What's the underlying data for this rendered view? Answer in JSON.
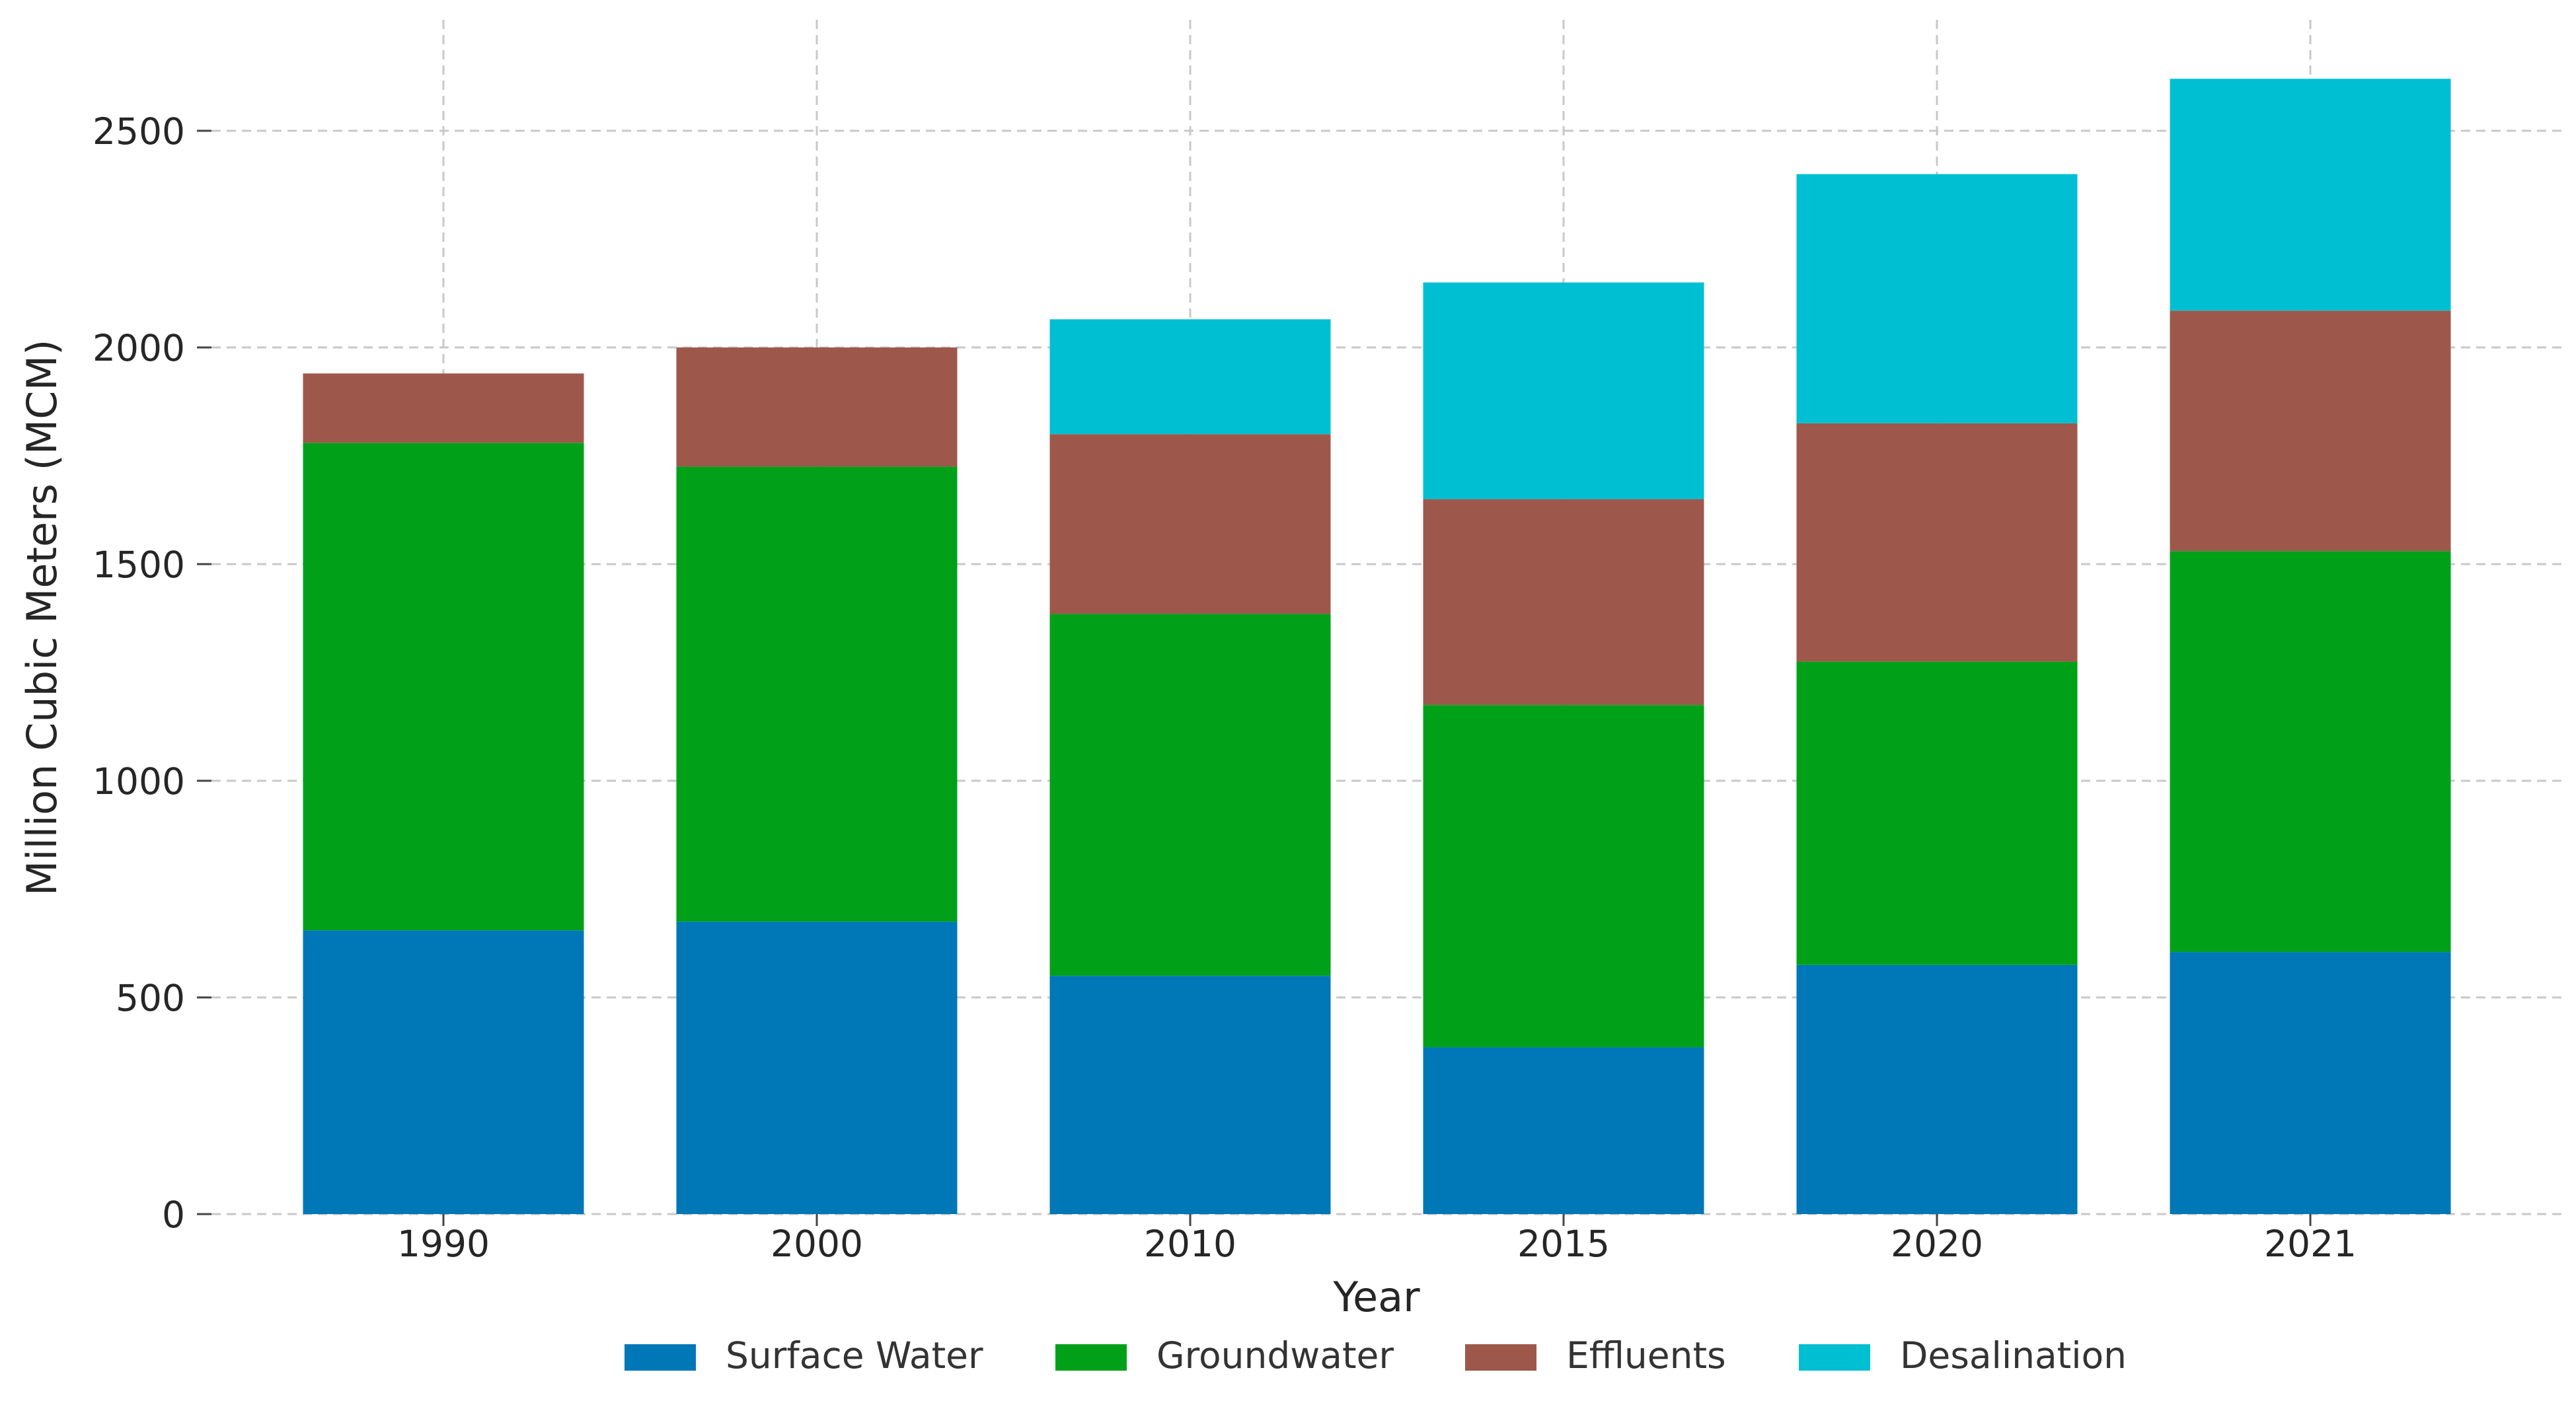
{
  "chart_data": {
    "type": "bar",
    "stacked": true,
    "title": "",
    "xlabel": "Year",
    "ylabel": "Million Cubic Meters (MCM)",
    "categories": [
      "1990",
      "2000",
      "2010",
      "2015",
      "2020",
      "2021"
    ],
    "ylim": [
      0,
      2700
    ],
    "yticks": [
      0,
      500,
      1000,
      1500,
      2000,
      2500
    ],
    "grid": true,
    "legend_position": "bottom",
    "series": [
      {
        "name": "Surface Water",
        "color": "#0077B6",
        "values": [
          655,
          675,
          550,
          385,
          575,
          605
        ]
      },
      {
        "name": "Groundwater",
        "color": "#00A119",
        "values": [
          1125,
          1050,
          835,
          790,
          700,
          925
        ]
      },
      {
        "name": "Effluents",
        "color": "#9E584B",
        "values": [
          160,
          275,
          415,
          475,
          550,
          555
        ]
      },
      {
        "name": "Desalination",
        "color": "#00BFD3",
        "values": [
          0,
          0,
          265,
          500,
          575,
          535
        ]
      }
    ]
  }
}
